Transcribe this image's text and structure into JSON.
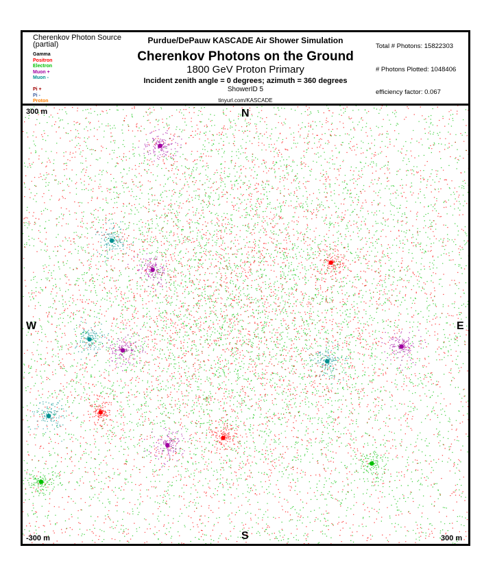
{
  "legend": {
    "title": "Cherenkov Photon Source\n(partial)",
    "items": [
      {
        "label": "Gamma",
        "color": "#000000"
      },
      {
        "label": "Positron",
        "color": "#ff0000"
      },
      {
        "label": "Electron",
        "color": "#00c000"
      },
      {
        "label": "Muon +",
        "color": "#a000a0"
      },
      {
        "label": "Muon -",
        "color": "#009090"
      },
      {
        "label": "",
        "color": "#e8e800"
      },
      {
        "label": "Pi +",
        "color": "#a00000"
      },
      {
        "label": "Pi -",
        "color": "#4060a0"
      },
      {
        "label": "Proton",
        "color": "#ff8000"
      }
    ]
  },
  "header": {
    "sim_title": "Purdue/DePauw KASCADE Air Shower Simulation",
    "main_title": "Cherenkov Photons on the Ground",
    "subtitle": "1800 GeV Proton Primary",
    "incident": "Incident zenith angle =  0 degrees;  azimuth =  360 degrees",
    "shower_id": "ShowerID 5",
    "url": "tinyurl.com/KASCADE"
  },
  "stats": {
    "total_photons": "Total # Photons: 15822303",
    "photons_plotted": "# Photons Plotted: 1048406",
    "efficiency": "efficiency factor: 0.067"
  },
  "chart_data": {
    "type": "scatter",
    "title": "Cherenkov Photons on the Ground",
    "xlim": [
      -300,
      300
    ],
    "ylim": [
      -300,
      300
    ],
    "units": "m",
    "grid": false,
    "legend_placement": "top-left",
    "corner_labels": {
      "top_left": "300 m",
      "bottom_left": "-300 m",
      "bottom_right": "300 m"
    },
    "directions": {
      "north": "N",
      "south": "S",
      "west": "W",
      "east": "E"
    },
    "series_colors": {
      "electron": "#00c000",
      "positron": "#ff0000",
      "muon_plus": "#a000a0",
      "muon_minus": "#009090"
    },
    "clusters": [
      {
        "x": 0,
        "y": 30,
        "spread": 160,
        "type": "core"
      },
      {
        "x": -180,
        "y": 115,
        "type": "muon-"
      },
      {
        "x": -115,
        "y": 245,
        "type": "muon+"
      },
      {
        "x": -125,
        "y": 75,
        "type": "muon+"
      },
      {
        "x": 115,
        "y": 85,
        "type": "positron"
      },
      {
        "x": -210,
        "y": -20,
        "type": "muon-"
      },
      {
        "x": -165,
        "y": -35,
        "type": "muon+"
      },
      {
        "x": 210,
        "y": -30,
        "type": "muon+"
      },
      {
        "x": 110,
        "y": -50,
        "type": "muon-"
      },
      {
        "x": -265,
        "y": -125,
        "type": "muon-"
      },
      {
        "x": -195,
        "y": -120,
        "type": "positron"
      },
      {
        "x": -105,
        "y": -165,
        "type": "muon+"
      },
      {
        "x": -30,
        "y": -155,
        "type": "positron"
      },
      {
        "x": 170,
        "y": -190,
        "type": "electron"
      },
      {
        "x": -275,
        "y": -215,
        "type": "electron"
      }
    ]
  }
}
